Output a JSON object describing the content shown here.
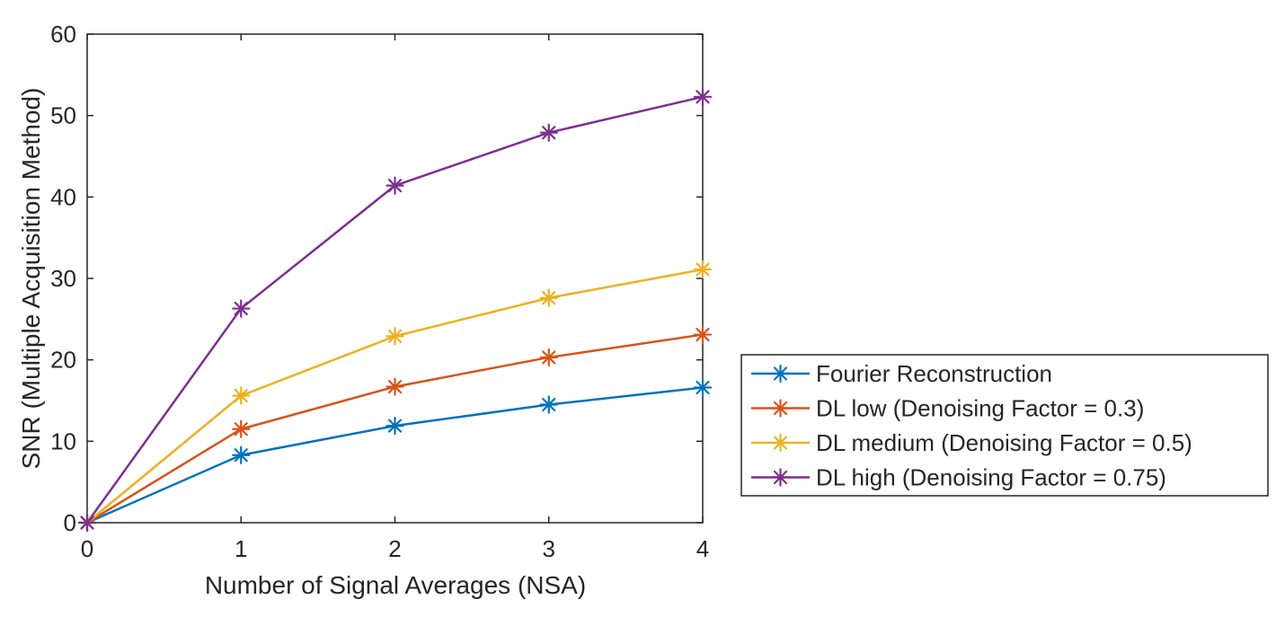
{
  "chart_data": {
    "type": "line",
    "title": "",
    "xlabel": "Number of Signal Averages (NSA)",
    "ylabel": "SNR (Multiple Acquisition Method)",
    "x": [
      0,
      1,
      2,
      3,
      4
    ],
    "xlim": [
      0,
      4
    ],
    "ylim": [
      0,
      60
    ],
    "xticks": [
      "0",
      "1",
      "2",
      "3",
      "4"
    ],
    "yticks": [
      "0",
      "10",
      "20",
      "30",
      "40",
      "50",
      "60"
    ],
    "grid": false,
    "legend_position": "right",
    "marker": "asterisk",
    "series": [
      {
        "name": "Fourier Reconstruction",
        "color": "#0072BD",
        "values": [
          0,
          8.3,
          11.9,
          14.5,
          16.6
        ]
      },
      {
        "name": "DL low (Denoising Factor = 0.3)",
        "color": "#D95319",
        "values": [
          0,
          11.5,
          16.7,
          20.3,
          23.1
        ]
      },
      {
        "name": "DL medium (Denoising Factor = 0.5)",
        "color": "#EDB120",
        "values": [
          0,
          15.6,
          22.9,
          27.6,
          31.1
        ]
      },
      {
        "name": "DL high (Denoising Factor = 0.75)",
        "color": "#7E2F8E",
        "values": [
          0,
          26.3,
          41.4,
          47.9,
          52.3
        ]
      }
    ]
  }
}
